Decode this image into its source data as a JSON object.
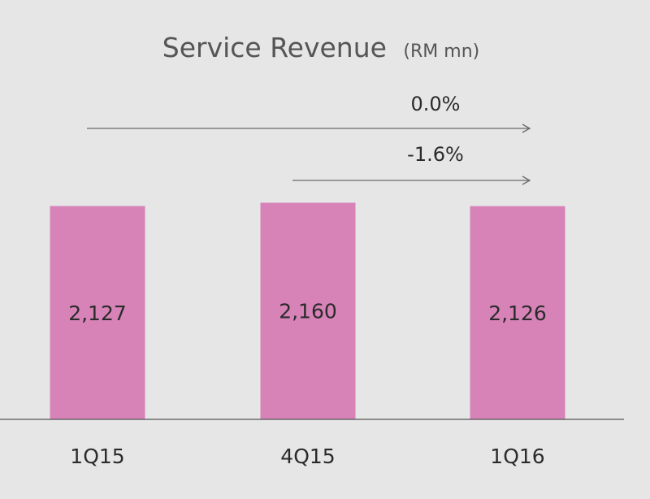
{
  "chart_data": {
    "type": "bar",
    "title": "Service Revenue",
    "unit": "(RM mn)",
    "categories": [
      "1Q15",
      "4Q15",
      "1Q16"
    ],
    "values": [
      2127,
      2160,
      2126
    ],
    "value_labels": [
      "2,127",
      "2,160",
      "2,126"
    ],
    "xlabel": "",
    "ylabel": "",
    "ylim": [
      0,
      2350
    ],
    "grid": false,
    "legend": "none",
    "bar_color": "#d783b8",
    "annotations": [
      {
        "label": "0.0%",
        "from": "1Q15",
        "to": "1Q16"
      },
      {
        "label": "-1.6%",
        "from": "4Q15",
        "to": "1Q16"
      }
    ]
  },
  "colors": {
    "background": "#e6e6e7",
    "text": "#2b2b2b",
    "title": "#555555",
    "axis": "#555555",
    "arrow": "#6a6a6a"
  }
}
